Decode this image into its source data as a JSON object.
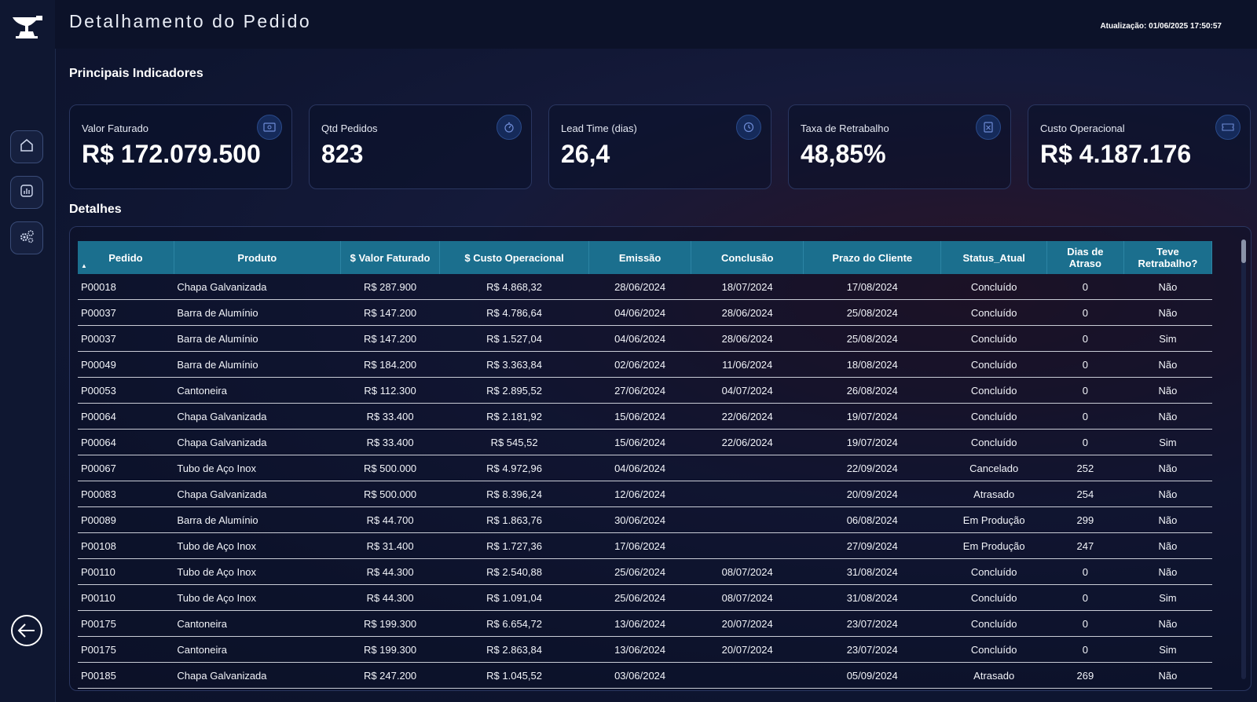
{
  "header": {
    "title": "Detalhamento do Pedido",
    "update": "Atualização: 01/06/2025 17:50:57"
  },
  "sections": {
    "kpis": "Principais Indicadores",
    "details": "Detalhes"
  },
  "kpis": [
    {
      "label": "Valor Faturado",
      "value": "R$ 172.079.500",
      "icon": "money-icon"
    },
    {
      "label": "Qtd Pedidos",
      "value": "823",
      "icon": "timer-icon"
    },
    {
      "label": "Lead Time (dias)",
      "value": "26,4",
      "icon": "clock-icon"
    },
    {
      "label": "Taxa de Retrabalho",
      "value": "48,85%",
      "icon": "calculator-icon"
    },
    {
      "label": "Custo Operacional",
      "value": "R$ 4.187.176",
      "icon": "ticket-icon"
    }
  ],
  "table": {
    "columns": [
      "Pedido",
      "Produto",
      "$ Valor Faturado",
      "$ Custo Operacional",
      "Emissão",
      "Conclusão",
      "Prazo do Cliente",
      "Status_Atual",
      "Dias de Atraso",
      "Teve Retrabalho?"
    ],
    "rows": [
      [
        "P00018",
        "Chapa Galvanizada",
        "R$ 287.900",
        "R$ 4.868,32",
        "28/06/2024",
        "18/07/2024",
        "17/08/2024",
        "Concluído",
        "0",
        "Não"
      ],
      [
        "P00037",
        "Barra de Alumínio",
        "R$ 147.200",
        "R$ 4.786,64",
        "04/06/2024",
        "28/06/2024",
        "25/08/2024",
        "Concluído",
        "0",
        "Não"
      ],
      [
        "P00037",
        "Barra de Alumínio",
        "R$ 147.200",
        "R$ 1.527,04",
        "04/06/2024",
        "28/06/2024",
        "25/08/2024",
        "Concluído",
        "0",
        "Sim"
      ],
      [
        "P00049",
        "Barra de Alumínio",
        "R$ 184.200",
        "R$ 3.363,84",
        "02/06/2024",
        "11/06/2024",
        "18/08/2024",
        "Concluído",
        "0",
        "Não"
      ],
      [
        "P00053",
        "Cantoneira",
        "R$ 112.300",
        "R$ 2.895,52",
        "27/06/2024",
        "04/07/2024",
        "26/08/2024",
        "Concluído",
        "0",
        "Não"
      ],
      [
        "P00064",
        "Chapa Galvanizada",
        "R$ 33.400",
        "R$ 2.181,92",
        "15/06/2024",
        "22/06/2024",
        "19/07/2024",
        "Concluído",
        "0",
        "Não"
      ],
      [
        "P00064",
        "Chapa Galvanizada",
        "R$ 33.400",
        "R$ 545,52",
        "15/06/2024",
        "22/06/2024",
        "19/07/2024",
        "Concluído",
        "0",
        "Sim"
      ],
      [
        "P00067",
        "Tubo de Aço Inox",
        "R$ 500.000",
        "R$ 4.972,96",
        "04/06/2024",
        "",
        "22/09/2024",
        "Cancelado",
        "252",
        "Não"
      ],
      [
        "P00083",
        "Chapa Galvanizada",
        "R$ 500.000",
        "R$ 8.396,24",
        "12/06/2024",
        "",
        "20/09/2024",
        "Atrasado",
        "254",
        "Não"
      ],
      [
        "P00089",
        "Barra de Alumínio",
        "R$ 44.700",
        "R$ 1.863,76",
        "30/06/2024",
        "",
        "06/08/2024",
        "Em Produção",
        "299",
        "Não"
      ],
      [
        "P00108",
        "Tubo de Aço Inox",
        "R$ 31.400",
        "R$ 1.727,36",
        "17/06/2024",
        "",
        "27/09/2024",
        "Em Produção",
        "247",
        "Não"
      ],
      [
        "P00110",
        "Tubo de Aço Inox",
        "R$ 44.300",
        "R$ 2.540,88",
        "25/06/2024",
        "08/07/2024",
        "31/08/2024",
        "Concluído",
        "0",
        "Não"
      ],
      [
        "P00110",
        "Tubo de Aço Inox",
        "R$ 44.300",
        "R$ 1.091,04",
        "25/06/2024",
        "08/07/2024",
        "31/08/2024",
        "Concluído",
        "0",
        "Sim"
      ],
      [
        "P00175",
        "Cantoneira",
        "R$ 199.300",
        "R$ 6.654,72",
        "13/06/2024",
        "20/07/2024",
        "23/07/2024",
        "Concluído",
        "0",
        "Não"
      ],
      [
        "P00175",
        "Cantoneira",
        "R$ 199.300",
        "R$ 2.863,84",
        "13/06/2024",
        "20/07/2024",
        "23/07/2024",
        "Concluído",
        "0",
        "Sim"
      ],
      [
        "P00185",
        "Chapa Galvanizada",
        "R$ 247.200",
        "R$ 1.045,52",
        "03/06/2024",
        "",
        "05/09/2024",
        "Atrasado",
        "269",
        "Não"
      ]
    ]
  },
  "colors": {
    "header_bg": "#1b6f8e",
    "background": "#0e1530",
    "accent": "#2a4a8a"
  }
}
